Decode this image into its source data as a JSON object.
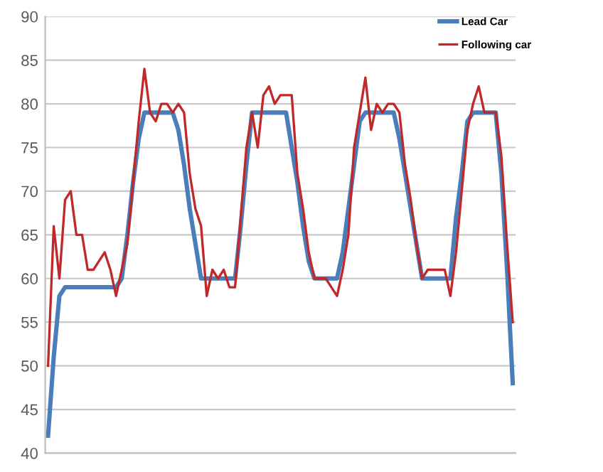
{
  "chart_data": {
    "type": "line",
    "categories": [
      null,
      null,
      null,
      null,
      null,
      null,
      null,
      null,
      null,
      null,
      null,
      null,
      null,
      null,
      null,
      null,
      null,
      null,
      null,
      null,
      null,
      null,
      null,
      null,
      null,
      null,
      null,
      null,
      null,
      null,
      null,
      null,
      null,
      null,
      null,
      null,
      null,
      null,
      null,
      null,
      null,
      null,
      null,
      null,
      null,
      null,
      null,
      null,
      null,
      null,
      null,
      null,
      null,
      null,
      null,
      null,
      null,
      null,
      null,
      null,
      null,
      null,
      null,
      null,
      null,
      null,
      null,
      null,
      null,
      null,
      null,
      null,
      null,
      null,
      null,
      null,
      null,
      null,
      null,
      null,
      null,
      null,
      null
    ],
    "series": [
      {
        "name": "Lead Car",
        "color": "#4a7ebb",
        "values": [
          42,
          51,
          58,
          59,
          59,
          59,
          59,
          59,
          59,
          59,
          59,
          59,
          59,
          60,
          65,
          71,
          76,
          79,
          79,
          79,
          79,
          79,
          79,
          77,
          73,
          68,
          64,
          60,
          60,
          60,
          60,
          60,
          60,
          60,
          66,
          73,
          79,
          79,
          79,
          79,
          79,
          79,
          79,
          75,
          71,
          66,
          62,
          60,
          60,
          60,
          60,
          60,
          63,
          68,
          73,
          78,
          79,
          79,
          79,
          79,
          79,
          79,
          76,
          72,
          68,
          64,
          60,
          60,
          60,
          60,
          60,
          60,
          67,
          72,
          78,
          79,
          79,
          79,
          79,
          79,
          72,
          61,
          48
        ]
      },
      {
        "name": "Following car",
        "color": "#c0282a",
        "values": [
          50,
          66,
          60,
          69,
          70,
          65,
          65,
          61,
          61,
          62,
          63,
          61,
          58,
          61,
          64,
          71,
          78,
          84,
          79,
          78,
          80,
          80,
          79,
          80,
          79,
          72,
          68,
          66,
          58,
          61,
          60,
          61,
          59,
          59,
          67,
          75,
          79,
          75,
          81,
          82,
          80,
          81,
          81,
          81,
          72,
          68,
          63,
          60,
          60,
          60,
          59,
          58,
          61,
          65,
          75,
          79,
          83,
          77,
          80,
          79,
          80,
          80,
          79,
          73,
          69,
          64,
          60,
          61,
          61,
          61,
          61,
          58,
          63,
          70,
          77,
          80,
          82,
          79,
          79,
          79,
          74,
          64,
          55
        ]
      }
    ],
    "ylim": [
      40,
      90
    ],
    "yticks": [
      40,
      45,
      50,
      55,
      60,
      65,
      70,
      75,
      80,
      85,
      90
    ],
    "grid": "y",
    "legend": "top right"
  }
}
